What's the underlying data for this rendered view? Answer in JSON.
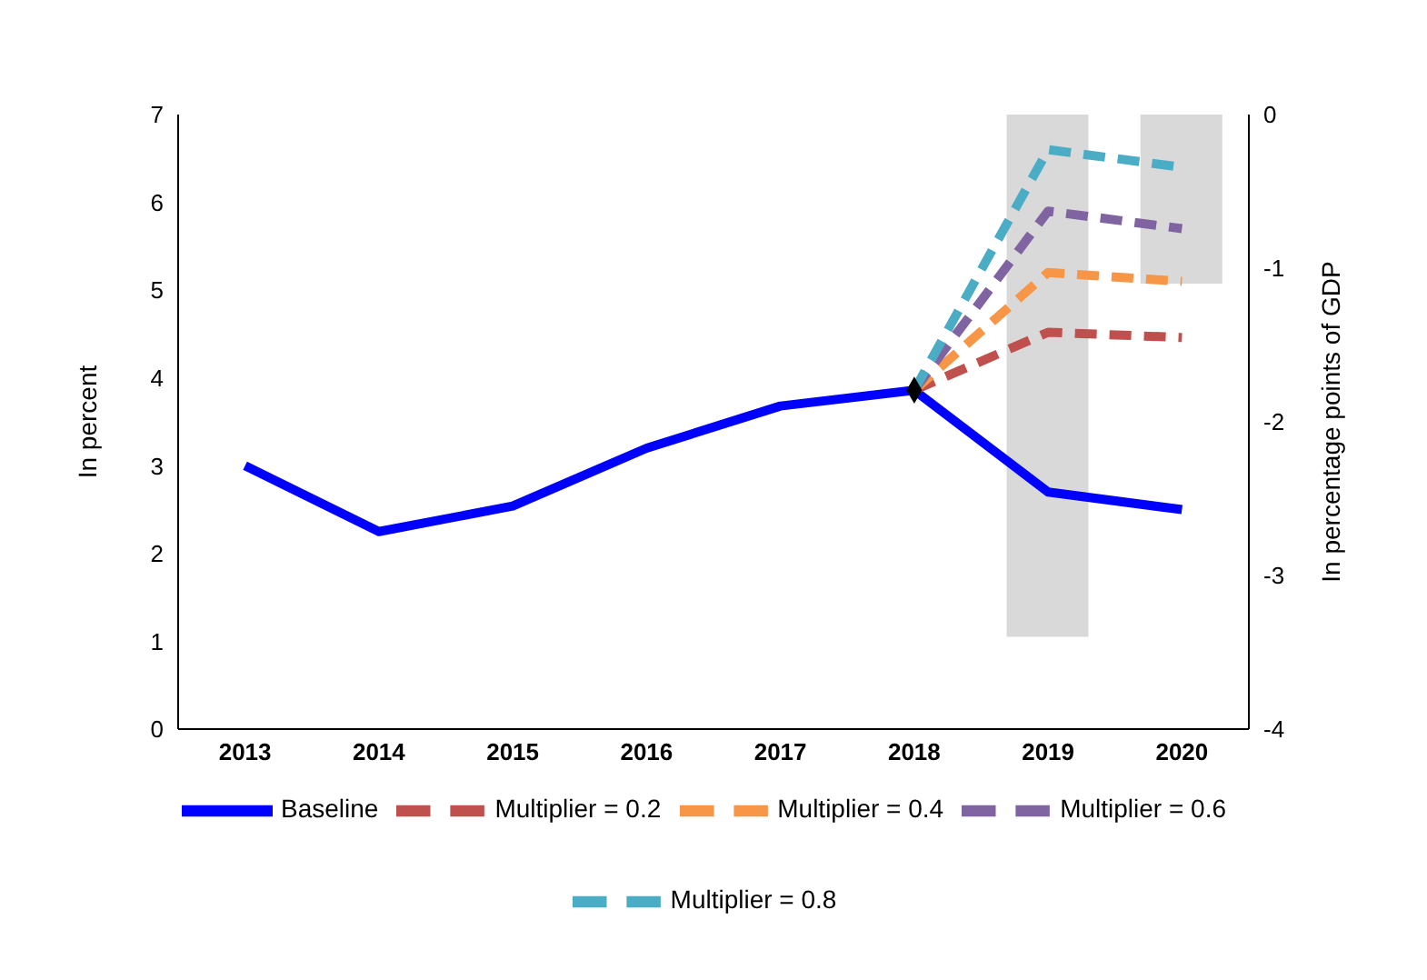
{
  "chart_data": {
    "type": "line",
    "ylabel": "In percent",
    "y2label": "In percentage points of GDP",
    "categories": [
      "2013",
      "2014",
      "2015",
      "2016",
      "2017",
      "2018",
      "2019",
      "2020"
    ],
    "series": [
      {
        "type": "bar",
        "axis": "y2",
        "color": "#d9d9d9",
        "values": [
          null,
          null,
          null,
          null,
          null,
          null,
          -3.4,
          -1.1
        ]
      },
      {
        "name": "Baseline",
        "color": "#0000ff",
        "line_style": "solid",
        "values": [
          3.0,
          2.25,
          2.54,
          3.2,
          3.68,
          3.86,
          2.7,
          2.5
        ]
      },
      {
        "name": "Multiplier = 0.2",
        "color": "#c0504d",
        "line_style": "dashed",
        "values": [
          null,
          null,
          null,
          null,
          null,
          3.86,
          4.52,
          4.46
        ]
      },
      {
        "name": "Multiplier = 0.4",
        "color": "#f79646",
        "line_style": "dashed",
        "values": [
          null,
          null,
          null,
          null,
          null,
          3.86,
          5.2,
          5.1
        ]
      },
      {
        "name": "Multiplier = 0.6",
        "color": "#8064a2",
        "line_style": "dashed",
        "values": [
          null,
          null,
          null,
          null,
          null,
          3.86,
          5.9,
          5.7
        ]
      },
      {
        "name": "Multiplier = 0.8",
        "color": "#4bacc6",
        "line_style": "dashed",
        "values": [
          null,
          null,
          null,
          null,
          null,
          3.86,
          6.6,
          6.4
        ]
      },
      {
        "type": "scatter",
        "color": "#000000",
        "marker": "diamond",
        "values": [
          null,
          null,
          null,
          null,
          null,
          3.86,
          null,
          null
        ]
      }
    ],
    "ylim": [
      0,
      7
    ],
    "yticks": [
      0,
      1,
      2,
      3,
      4,
      5,
      6,
      7
    ],
    "y2lim": [
      -4,
      0
    ],
    "y2ticks": [
      -4,
      -3,
      -2,
      -1,
      0
    ],
    "grid": false,
    "legend": "bottom"
  }
}
